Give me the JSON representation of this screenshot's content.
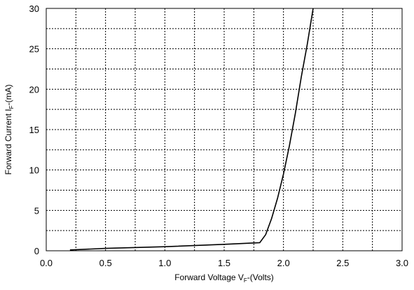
{
  "chart_data": {
    "type": "line",
    "title": "",
    "xlabel": {
      "main": "Forward Voltage V",
      "sub": "F",
      "tail": "-(Volts)"
    },
    "ylabel": {
      "main": "Forward Current I",
      "sub": "F",
      "tail": "-(mA)"
    },
    "xlim": [
      0,
      3.0
    ],
    "ylim": [
      0,
      30
    ],
    "x_ticks": [
      0.0,
      0.5,
      1.0,
      1.5,
      2.0,
      2.5,
      3.0
    ],
    "x_tick_labels": [
      "0.0",
      "0.5",
      "1.0",
      "1.5",
      "2.0",
      "2.5",
      "3.0"
    ],
    "y_ticks": [
      0,
      5,
      10,
      15,
      20,
      25,
      30
    ],
    "y_tick_labels": [
      "0",
      "5",
      "10",
      "15",
      "20",
      "25",
      "30"
    ],
    "x_minor_step": 0.25,
    "y_minor_step": 2.5,
    "grid": true,
    "series": [
      {
        "x": [
          0.2,
          0.5,
          1.0,
          1.5,
          1.8,
          1.85,
          1.9,
          1.95,
          2.0,
          2.05,
          2.1,
          2.15,
          2.2,
          2.25
        ],
        "y": [
          0.1,
          0.3,
          0.5,
          0.8,
          1.0,
          2.0,
          4.0,
          6.5,
          9.5,
          13.0,
          17.0,
          21.5,
          25.5,
          30.0
        ]
      }
    ]
  }
}
